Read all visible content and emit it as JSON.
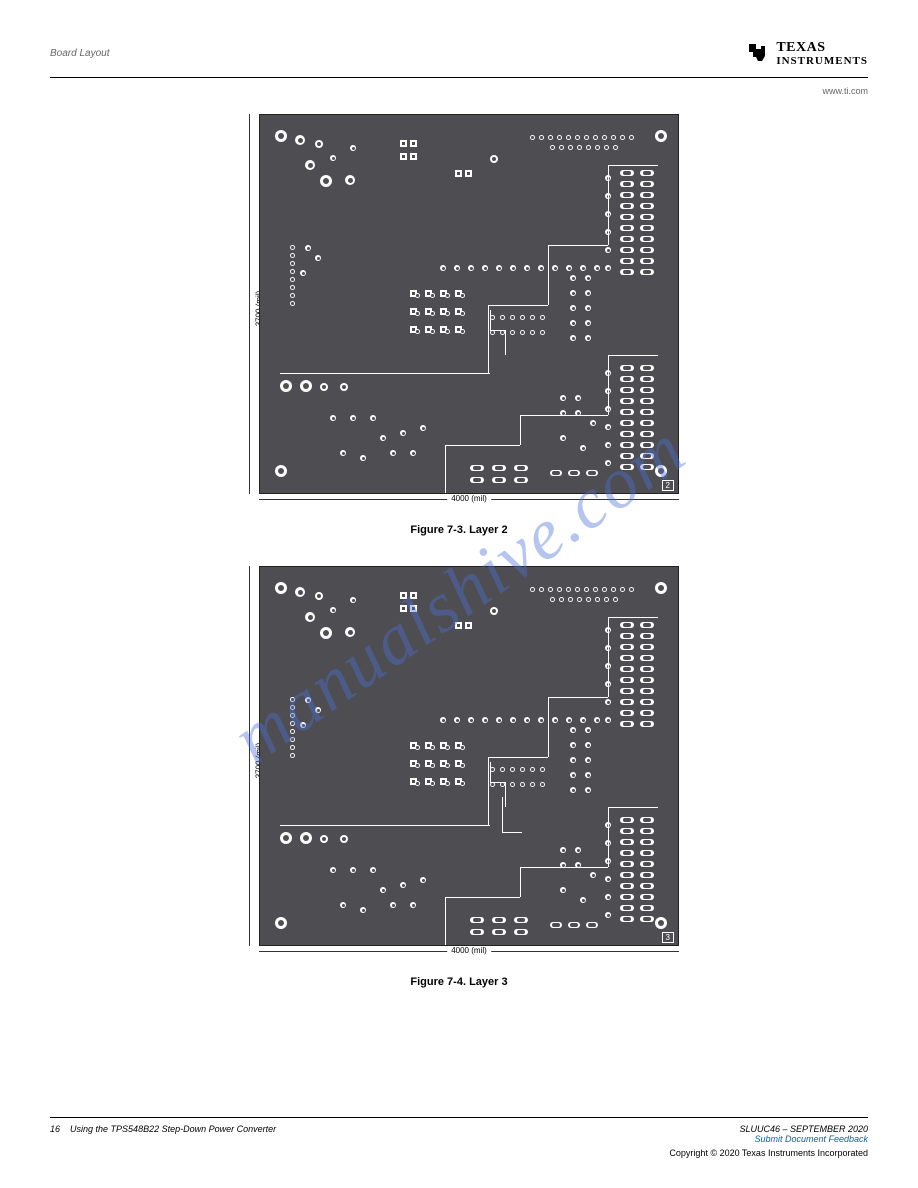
{
  "header": {
    "section": "Board Layout"
  },
  "logo": {
    "line1": "TEXAS",
    "line2": "INSTRUMENTS"
  },
  "doc": {
    "link": "www.ti.com"
  },
  "watermark": "manualshive.com",
  "figures": [
    {
      "layer_tag": "2",
      "caption": "Figure 7-3. Layer 2",
      "width_label": "4000 (mil)",
      "height_label": "3700 (mil)",
      "colors": {
        "board": "#4e4e52",
        "copper": "#ffffff"
      }
    },
    {
      "layer_tag": "3",
      "caption": "Figure 7-4. Layer 3",
      "width_label": "4000 (mil)",
      "height_label": "3700 (mil)",
      "colors": {
        "board": "#4e4e52",
        "copper": "#ffffff"
      }
    }
  ],
  "footer": {
    "page": "16",
    "title": "Using the TPS548B22 Step-Down Power Converter",
    "right": "SLUUC46 – SEPTEMBER 2020",
    "feedback": "Submit Document Feedback",
    "copyright": "Copyright © 2020 Texas Instruments Incorporated"
  }
}
